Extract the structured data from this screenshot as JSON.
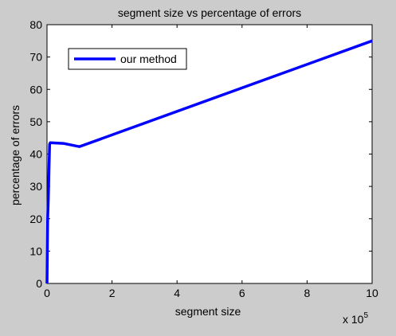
{
  "chart_data": {
    "type": "line",
    "title": "segment size vs percentage of errors",
    "xlabel": "segment size",
    "ylabel": "percentage of errors",
    "x_multiplier_label": "x 10",
    "x_multiplier_exponent": "5",
    "xlim": [
      0,
      10
    ],
    "ylim": [
      0,
      80
    ],
    "x_ticks": [
      0,
      2,
      4,
      6,
      8,
      10
    ],
    "y_ticks": [
      0,
      10,
      20,
      30,
      40,
      50,
      60,
      70,
      80
    ],
    "grid": false,
    "legend_position": "top-left",
    "series": [
      {
        "name": "our method",
        "color": "#0000ff",
        "x": [
          0,
          0.02,
          0.04,
          0.06,
          0.08,
          0.1,
          0.5,
          1.0,
          10.0
        ],
        "y": [
          0,
          20,
          26,
          35,
          43,
          43.5,
          43.3,
          42.3,
          75
        ]
      }
    ]
  }
}
